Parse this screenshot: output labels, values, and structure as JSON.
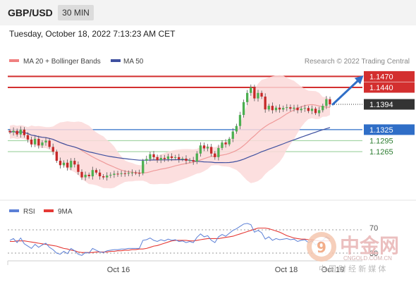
{
  "header": {
    "symbol": "GBP/USD",
    "timeframe": "30 MIN"
  },
  "timestamp": "Tuesday, October 18, 2022 7:13:23 AM CET",
  "watermark": {
    "cn_title": "中金网",
    "domain": "CNGOLD.COM.CN",
    "cn_subtitle": "中 国 财 经 新 媒 体"
  },
  "colors": {
    "accent_red": "#d32f2f",
    "accent_blue": "#2f6ec7",
    "support_green": "#a5d6a7",
    "bullish": "#4caf50",
    "bearish": "#c62828",
    "bollinger_fill": "#fbd9d9",
    "ma20": "#ef9a9a",
    "ma50": "#3f51a0",
    "rsi": "#5b7fd6",
    "rsi_ma": "#e53935"
  },
  "chart_data": [
    {
      "type": "candlestick",
      "title": "",
      "legend": [
        {
          "name": "MA 20 + Bollinger Bands",
          "color": "#f08080"
        },
        {
          "name": "MA 50",
          "color": "#3f51a0"
        }
      ],
      "legend_position": "top-left",
      "credit": "Research © 2022 Trading Central",
      "x_ticks": [
        "Oct 16",
        "Oct 18",
        "Oct 19"
      ],
      "y_range": [
        1.115,
        1.149
      ],
      "levels": [
        {
          "label": "1.1470",
          "value": 1.147,
          "color": "#d32f2f",
          "style": "solid",
          "tag": "box"
        },
        {
          "label": "1.1440",
          "value": 1.144,
          "color": "#d32f2f",
          "style": "solid",
          "tag": "box"
        },
        {
          "label": "1.1394",
          "value": 1.1394,
          "color": "#333333",
          "style": "dotted",
          "tag": "box"
        },
        {
          "label": "1.1325",
          "value": 1.1325,
          "color": "#2f6ec7",
          "style": "solid",
          "tag": "box"
        },
        {
          "label": "1.1295",
          "value": 1.1295,
          "color": "#a5d6a7",
          "style": "solid",
          "tag": "text-green"
        },
        {
          "label": "1.1265",
          "value": 1.1265,
          "color": "#a5d6a7",
          "style": "solid",
          "tag": "text-green"
        }
      ],
      "arrow": {
        "direction": "up",
        "from": 1.1394,
        "to": 1.147,
        "color": "#2f6ec7"
      },
      "closes": [
        1.1318,
        1.1322,
        1.1312,
        1.1325,
        1.131,
        1.1298,
        1.1285,
        1.13,
        1.1282,
        1.129,
        1.1295,
        1.1278,
        1.1265,
        1.124,
        1.1228,
        1.1235,
        1.1222,
        1.124,
        1.123,
        1.121,
        1.1195,
        1.1202,
        1.1198,
        1.1215,
        1.1208,
        1.1198,
        1.1195,
        1.12,
        1.1202,
        1.1205,
        1.1204,
        1.1206,
        1.1205,
        1.1207,
        1.1208,
        1.1207,
        1.1206,
        1.124,
        1.1245,
        1.1258,
        1.125,
        1.1242,
        1.1248,
        1.1245,
        1.1252,
        1.1248,
        1.125,
        1.1244,
        1.1246,
        1.124,
        1.1242,
        1.1238,
        1.126,
        1.1282,
        1.1274,
        1.1278,
        1.126,
        1.125,
        1.1275,
        1.129,
        1.1285,
        1.13,
        1.132,
        1.1335,
        1.1365,
        1.14,
        1.1425,
        1.144,
        1.141,
        1.1425,
        1.1415,
        1.138,
        1.139,
        1.1378,
        1.1385,
        1.138,
        1.1384,
        1.1386,
        1.1382,
        1.1385,
        1.1378,
        1.1382,
        1.1384,
        1.1376,
        1.1382,
        1.137,
        1.1378,
        1.139,
        1.1408,
        1.1394
      ],
      "indicator": {
        "name": "RSI",
        "legend": [
          {
            "name": "RSI",
            "color": "#5b7fd6"
          },
          {
            "name": "9MA",
            "color": "#e53935"
          }
        ],
        "levels": [
          "70",
          "30"
        ],
        "rsi": [
          52,
          55,
          48,
          56,
          46,
          42,
          38,
          45,
          40,
          44,
          47,
          40,
          36,
          30,
          28,
          33,
          29,
          38,
          34,
          28,
          26,
          31,
          30,
          38,
          35,
          32,
          31,
          34,
          35,
          36,
          36,
          37,
          37,
          38,
          38,
          38,
          38,
          52,
          53,
          56,
          52,
          50,
          53,
          51,
          54,
          52,
          53,
          50,
          51,
          48,
          50,
          48,
          57,
          63,
          58,
          60,
          52,
          48,
          58,
          62,
          59,
          64,
          69,
          72,
          76,
          80,
          81,
          79,
          66,
          69,
          65,
          54,
          58,
          52,
          55,
          53,
          54,
          55,
          53,
          54,
          50,
          52,
          53,
          48,
          51,
          44,
          48,
          52,
          58,
          54
        ],
        "ma": [
          50,
          50,
          51,
          51,
          51,
          50,
          49,
          48,
          47,
          46,
          45,
          44,
          43,
          42,
          40,
          38,
          37,
          35,
          34,
          32,
          31,
          31,
          31,
          31,
          32,
          32,
          32,
          32,
          33,
          33,
          34,
          34,
          35,
          35,
          36,
          36,
          37,
          37,
          38,
          40,
          42,
          43,
          45,
          47,
          49,
          51,
          52,
          52,
          52,
          52,
          51,
          51,
          52,
          53,
          54,
          55,
          55,
          55,
          55,
          56,
          57,
          58,
          59,
          61,
          63,
          65,
          67,
          69,
          71,
          73,
          73,
          73,
          72,
          70,
          68,
          66,
          63,
          60,
          58,
          56,
          55,
          54,
          54,
          53,
          53,
          52,
          51,
          51,
          51,
          51
        ]
      }
    }
  ]
}
